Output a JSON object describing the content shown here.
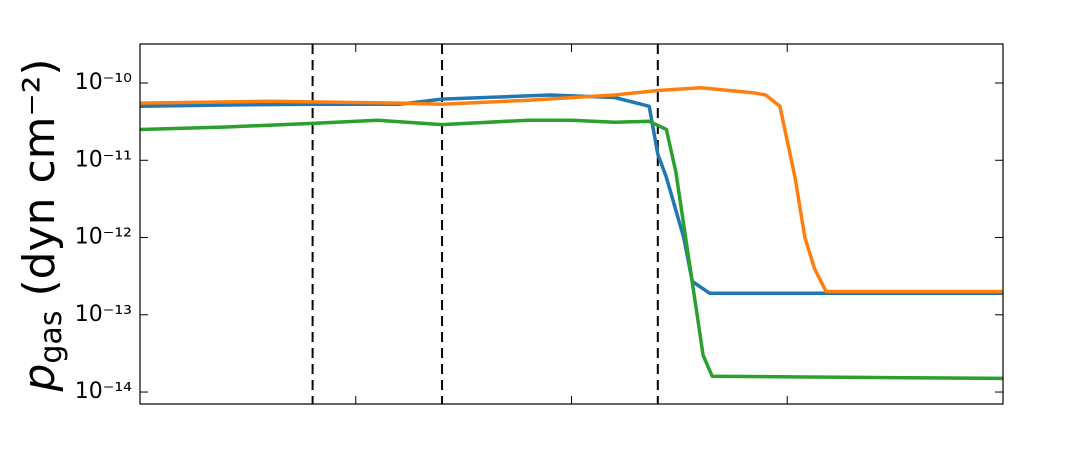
{
  "chart_data": {
    "type": "line",
    "y_label": {
      "symbol": "p",
      "subscript": "gas",
      "unit": "(dyn cm⁻²)"
    },
    "log_y": true,
    "xlim": [
      0,
      20
    ],
    "xticks": [
      0,
      5,
      10,
      15,
      20
    ],
    "ylim": [
      7e-15,
      3.2e-10
    ],
    "yticks": [
      {
        "value": 1e-14,
        "label": "10⁻¹⁴"
      },
      {
        "value": 1e-13,
        "label": "10⁻¹³"
      },
      {
        "value": 1e-12,
        "label": "10⁻¹²"
      },
      {
        "value": 1e-11,
        "label": "10⁻¹¹"
      },
      {
        "value": 1e-10,
        "label": "10⁻¹⁰"
      }
    ],
    "vlines": [
      4,
      7,
      12
    ],
    "series": [
      {
        "color": "#1f77b4",
        "x": [
          0,
          2,
          4,
          6,
          7,
          8,
          9.5,
          11,
          11.8,
          12,
          12.2,
          12.6,
          12.8,
          13.2,
          20
        ],
        "values": [
          5e-11,
          5.2e-11,
          5.3e-11,
          5.3e-11,
          6.2e-11,
          6.5e-11,
          7e-11,
          6.5e-11,
          5e-11,
          1.2e-11,
          6e-12,
          1e-12,
          2.7e-13,
          1.9e-13,
          1.9e-13
        ]
      },
      {
        "color": "#ff7f0e",
        "x": [
          0,
          3,
          6,
          7,
          9,
          11,
          12,
          13,
          14.2,
          14.5,
          14.83,
          15.18,
          15.41,
          15.63,
          15.9,
          20
        ],
        "values": [
          5.5e-11,
          5.8e-11,
          5.5e-11,
          5.3e-11,
          6e-11,
          7e-11,
          8e-11,
          8.7e-11,
          7.5e-11,
          7e-11,
          5e-11,
          6e-12,
          1e-12,
          4e-13,
          2e-13,
          2e-13
        ]
      },
      {
        "color": "#2ca02c",
        "x": [
          0,
          2,
          4,
          5.5,
          7,
          9,
          10,
          11,
          11.8,
          12.2,
          12.42,
          12.75,
          13.05,
          13.26,
          20
        ],
        "values": [
          2.5e-11,
          2.7e-11,
          3e-11,
          3.3e-11,
          2.9e-11,
          3.3e-11,
          3.3e-11,
          3.1e-11,
          3.2e-11,
          2.5e-11,
          7e-12,
          4e-13,
          3e-14,
          1.6e-14,
          1.5e-14
        ]
      }
    ]
  }
}
